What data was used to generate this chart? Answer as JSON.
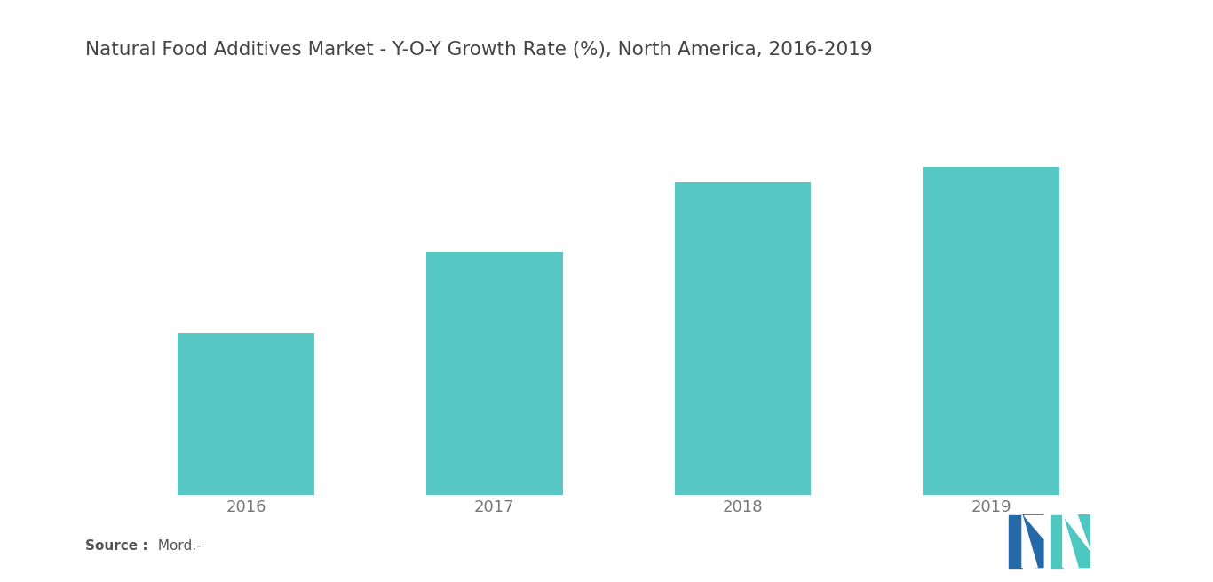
{
  "title": "Natural Food Additives Market - Y-O-Y Growth Rate (%), North America, 2016-2019",
  "categories": [
    "2016",
    "2017",
    "2018",
    "2019"
  ],
  "values": [
    3.2,
    4.8,
    6.2,
    6.5
  ],
  "bar_color": "#57C8C4",
  "background_color": "#ffffff",
  "title_fontsize": 15.5,
  "tick_fontsize": 13,
  "source_bold": "Source :",
  "source_normal": " Mord.-",
  "ylim": [
    0,
    7.5
  ],
  "bar_width": 0.55,
  "title_color": "#444444",
  "tick_color": "#777777",
  "logo_dark_blue": "#2669A8",
  "logo_teal": "#4DC8C0"
}
